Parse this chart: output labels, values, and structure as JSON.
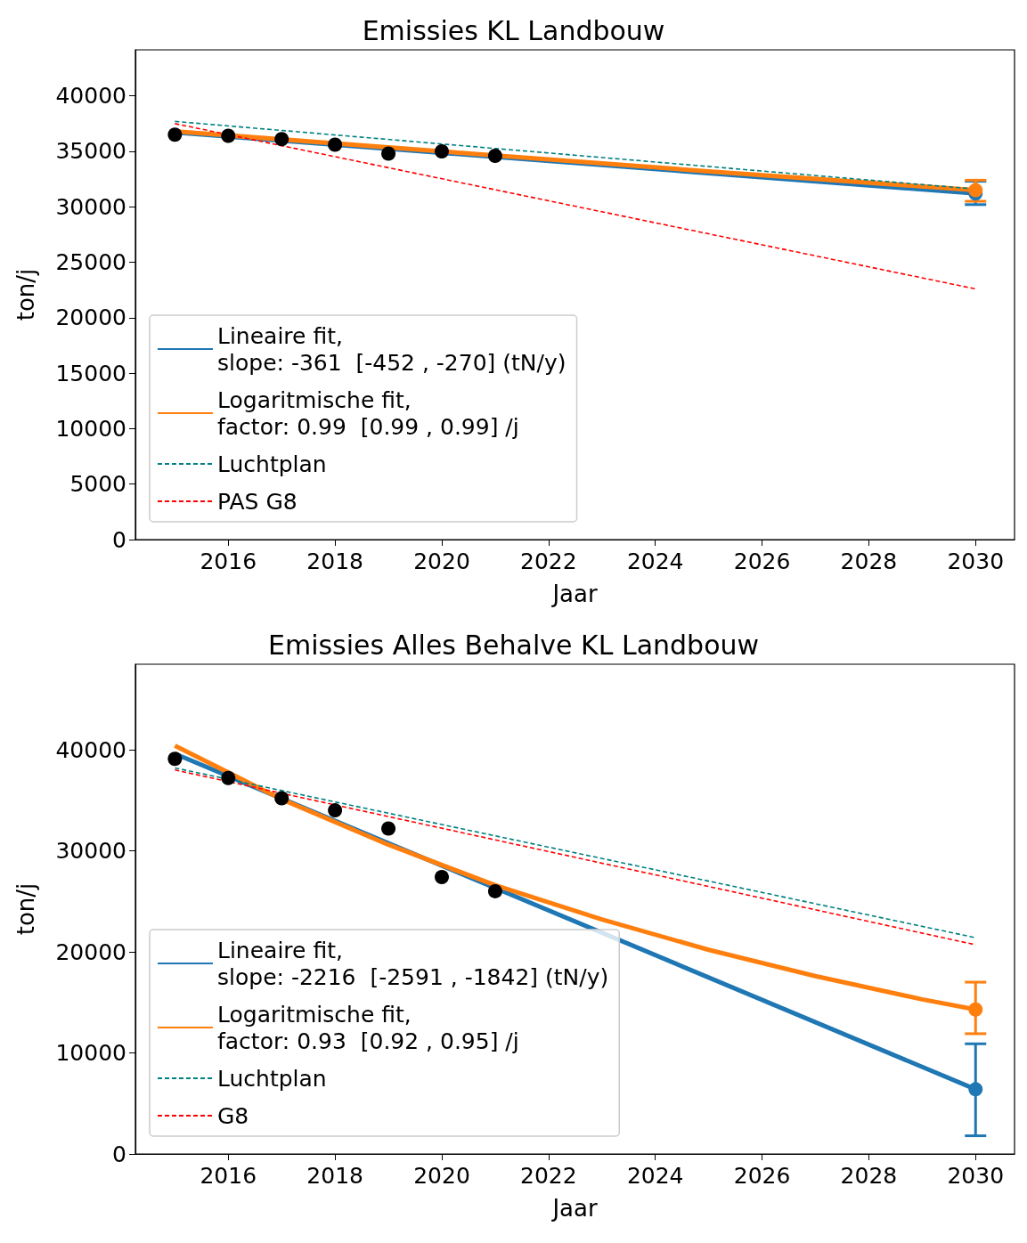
{
  "chart_data": [
    {
      "type": "line",
      "title": "Emissies KL Landbouw",
      "xlabel": "Jaar",
      "ylabel": "ton/j",
      "xlim": [
        2014.26,
        2030.73
      ],
      "xticks": [
        2016,
        2018,
        2020,
        2022,
        2024,
        2026,
        2028,
        2030
      ],
      "ylim": [
        0,
        44150
      ],
      "yticks": [
        0,
        5000,
        10000,
        15000,
        20000,
        25000,
        30000,
        35000,
        40000
      ],
      "grid": false,
      "legend": "bottom left",
      "series": [
        {
          "type": "scatter",
          "color": "#000000",
          "marker": "circle",
          "x": [
            2015,
            2016,
            2017,
            2018,
            2019,
            2020,
            2021
          ],
          "values": [
            36500,
            36400,
            36100,
            35600,
            34800,
            35000,
            34600
          ]
        },
        {
          "name": "Lineaire fit,\nslope: -361  [-452 , -270] (tN/y)",
          "color": "#1f77b4",
          "line_style": "solid",
          "x": [
            2015,
            2030
          ],
          "values": [
            36700,
            31200
          ]
        },
        {
          "name": "Logaritmische fit,\nfactor: 0.99  [0.99 , 0.99] /j",
          "color": "#ff7f0e",
          "line_style": "solid",
          "x": [
            2015,
            2020,
            2025,
            2030
          ],
          "values": [
            36800,
            35000,
            33200,
            31500
          ]
        },
        {
          "name": "Luchtplan",
          "color": "#008080",
          "line_style": "dashed",
          "x": [
            2015,
            2030
          ],
          "values": [
            37700,
            31600
          ]
        },
        {
          "name": "PAS G8",
          "color": "#ff0000",
          "line_style": "dashed",
          "x": [
            2015,
            2030
          ],
          "values": [
            37500,
            22600
          ]
        },
        {
          "type": "scatter",
          "color": "#1f77b4",
          "marker": "circle",
          "x": [
            2030
          ],
          "values": [
            31200
          ],
          "errors": [
            [
              30200,
              32300
            ]
          ]
        },
        {
          "type": "scatter",
          "color": "#ff7f0e",
          "marker": "circle",
          "x": [
            2030
          ],
          "values": [
            31500
          ],
          "errors": [
            [
              30500,
              32400
            ]
          ]
        }
      ]
    },
    {
      "type": "line",
      "title": "Emissies Alles Behalve KL Landbouw",
      "xlabel": "Jaar",
      "ylabel": "ton/j",
      "xlim": [
        2014.26,
        2030.73
      ],
      "xticks": [
        2016,
        2018,
        2020,
        2022,
        2024,
        2026,
        2028,
        2030
      ],
      "ylim": [
        0,
        48460
      ],
      "yticks": [
        0,
        10000,
        20000,
        30000,
        40000
      ],
      "grid": false,
      "legend": "bottom left",
      "series": [
        {
          "type": "scatter",
          "color": "#000000",
          "marker": "circle",
          "x": [
            2015,
            2016,
            2017,
            2018,
            2019,
            2020,
            2021
          ],
          "values": [
            39100,
            37200,
            35200,
            34000,
            32200,
            27400,
            26000
          ]
        },
        {
          "name": "Lineaire fit,\nslope: -2216  [-2591 , -1842] (tN/y)",
          "color": "#1f77b4",
          "line_style": "solid",
          "x": [
            2015,
            2030
          ],
          "values": [
            39600,
            6400
          ]
        },
        {
          "name": "Logaritmische fit,\nfactor: 0.93  [0.92 , 0.95] /j",
          "color": "#ff7f0e",
          "line_style": "solid",
          "x": [
            2015,
            2017,
            2019,
            2021,
            2023,
            2025,
            2027,
            2029,
            2030
          ],
          "values": [
            40400,
            35100,
            30600,
            26600,
            23200,
            20200,
            17600,
            15300,
            14300
          ]
        },
        {
          "name": "Luchtplan",
          "color": "#008080",
          "line_style": "dashed",
          "x": [
            2015,
            2030
          ],
          "values": [
            38200,
            21400
          ]
        },
        {
          "name": "G8",
          "color": "#ff0000",
          "line_style": "dashed",
          "x": [
            2015,
            2030
          ],
          "values": [
            38000,
            20700
          ]
        },
        {
          "type": "scatter",
          "color": "#1f77b4",
          "marker": "circle",
          "x": [
            2030
          ],
          "values": [
            6400
          ],
          "errors": [
            [
              1800,
              10900
            ]
          ]
        },
        {
          "type": "scatter",
          "color": "#ff7f0e",
          "marker": "circle",
          "x": [
            2030
          ],
          "values": [
            14300
          ],
          "errors": [
            [
              11900,
              17000
            ]
          ]
        }
      ]
    }
  ]
}
